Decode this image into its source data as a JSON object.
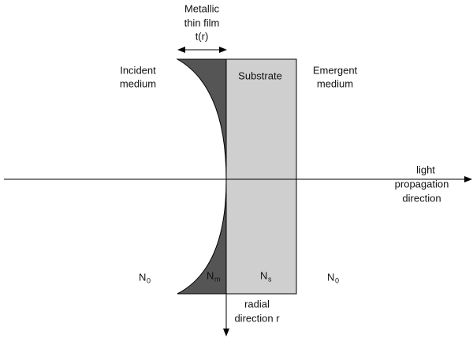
{
  "film_label": {
    "lines": [
      "Metallic",
      "thin film"
    ],
    "thickness": "t(r)"
  },
  "incident_label": [
    "Incident",
    "medium"
  ],
  "substrate_label": "Substrate",
  "emergent_label": [
    "Emergent",
    "medium"
  ],
  "axis_label": [
    "light",
    "propagation",
    "direction"
  ],
  "radial_label": [
    "radial",
    "direction r"
  ],
  "indices": [
    {
      "base": "N",
      "sub": "0"
    },
    {
      "base": "N",
      "sub": "m"
    },
    {
      "base": "N",
      "sub": "s"
    },
    {
      "base": "N",
      "sub": "0"
    }
  ]
}
